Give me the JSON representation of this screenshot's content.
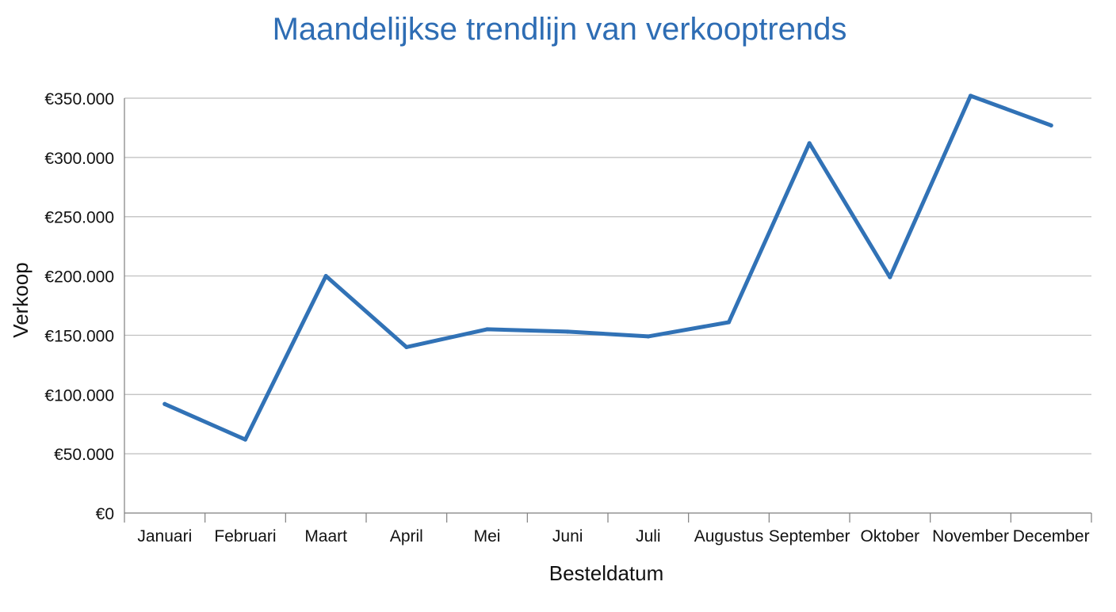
{
  "colors": {
    "accent": "#2E6DB4",
    "line": "#3172B6",
    "grid": "#BDBDBD",
    "axis": "#7F7F7F",
    "text": "#111111"
  },
  "chart_data": {
    "type": "line",
    "title": "Maandelijkse trendlijn van verkooptrends",
    "xlabel": "Besteldatum",
    "ylabel": "Verkoop",
    "categories": [
      "Januari",
      "Februari",
      "Maart",
      "April",
      "Mei",
      "Juni",
      "Juli",
      "Augustus",
      "September",
      "Oktober",
      "November",
      "December"
    ],
    "series": [
      {
        "name": "Verkoop",
        "values": [
          92000,
          62000,
          200000,
          140000,
          155000,
          153000,
          149000,
          161000,
          312000,
          199000,
          352000,
          327000
        ]
      }
    ],
    "ylim": [
      0,
      350000
    ],
    "yticks": [
      0,
      50000,
      100000,
      150000,
      200000,
      250000,
      300000,
      350000
    ],
    "ytick_labels": [
      "€0",
      "€50.000",
      "€100.000",
      "€150.000",
      "€200.000",
      "€250.000",
      "€300.000",
      "€350.000"
    ],
    "grid": true,
    "legend": "none"
  }
}
